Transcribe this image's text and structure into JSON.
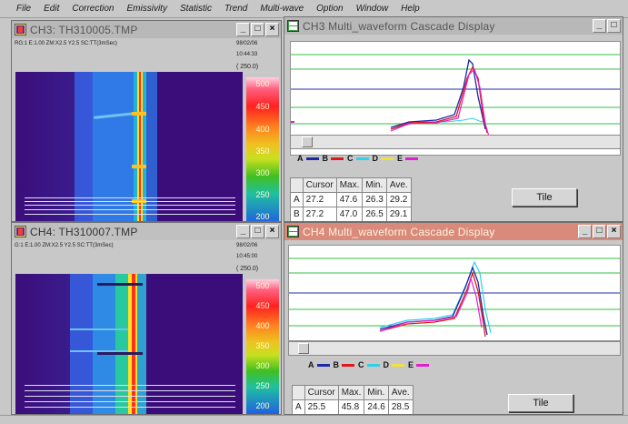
{
  "menu": [
    "File",
    "Edit",
    "Correction",
    "Emissivity",
    "Statistic",
    "Trend",
    "Multi-wave",
    "Option",
    "Window",
    "Help"
  ],
  "ch3_thermal": {
    "title": "CH3: TH310005.TMP",
    "info_left": "RG:1  E:1.00  ZM:X2.5 Y2.5 SC:TT(3mSec)",
    "date": "98/02/06",
    "time": "10:44:33",
    "value": "( 250.0)",
    "scale": [
      "500",
      "450",
      "400",
      "350",
      "300",
      "250",
      "200"
    ]
  },
  "ch4_thermal": {
    "title": "CH4: TH310007.TMP",
    "info_left": "G:1  E:1.00  ZM:X2.5 Y2.5 SC:TT(3mSec)",
    "date": "98/02/06",
    "time": "10:45:00",
    "value": "( 250.0)",
    "scale": [
      "500",
      "450",
      "400",
      "350",
      "300",
      "250",
      "200"
    ]
  },
  "ch3_cascade": {
    "title": "CH3 Multi_waveform Cascade Display",
    "legend": [
      {
        "label": "A",
        "color": "#1a2aa8"
      },
      {
        "label": "B",
        "color": "#e01818"
      },
      {
        "label": "C",
        "color": "#30d0e8"
      },
      {
        "label": "D",
        "color": "#f0e040"
      },
      {
        "label": "E",
        "color": "#e020d0"
      }
    ],
    "table": {
      "headers": [
        "",
        "Cursor",
        "Max.",
        "Min.",
        "Ave."
      ],
      "rows": [
        [
          "A",
          "27.2",
          "47.6",
          "26.3",
          "29.2"
        ],
        [
          "B",
          "27.2",
          "47.0",
          "26.5",
          "29.1"
        ]
      ]
    },
    "tile_label": "Tile"
  },
  "ch4_cascade": {
    "title": "CH4 Multi_waveform Cascade Display",
    "legend": [
      {
        "label": "A",
        "color": "#1a2aa8"
      },
      {
        "label": "B",
        "color": "#e01818"
      },
      {
        "label": "C",
        "color": "#30d0e8"
      },
      {
        "label": "D",
        "color": "#f0e040"
      },
      {
        "label": "E",
        "color": "#e020d0"
      }
    ],
    "table": {
      "headers": [
        "",
        "Cursor",
        "Max.",
        "Min.",
        "Ave."
      ],
      "rows": [
        [
          "A",
          "25.5",
          "45.8",
          "24.6",
          "28.5"
        ]
      ]
    },
    "tile_label": "Tile"
  },
  "window_buttons": {
    "minimize": "_",
    "maximize": "□",
    "close": "×"
  }
}
